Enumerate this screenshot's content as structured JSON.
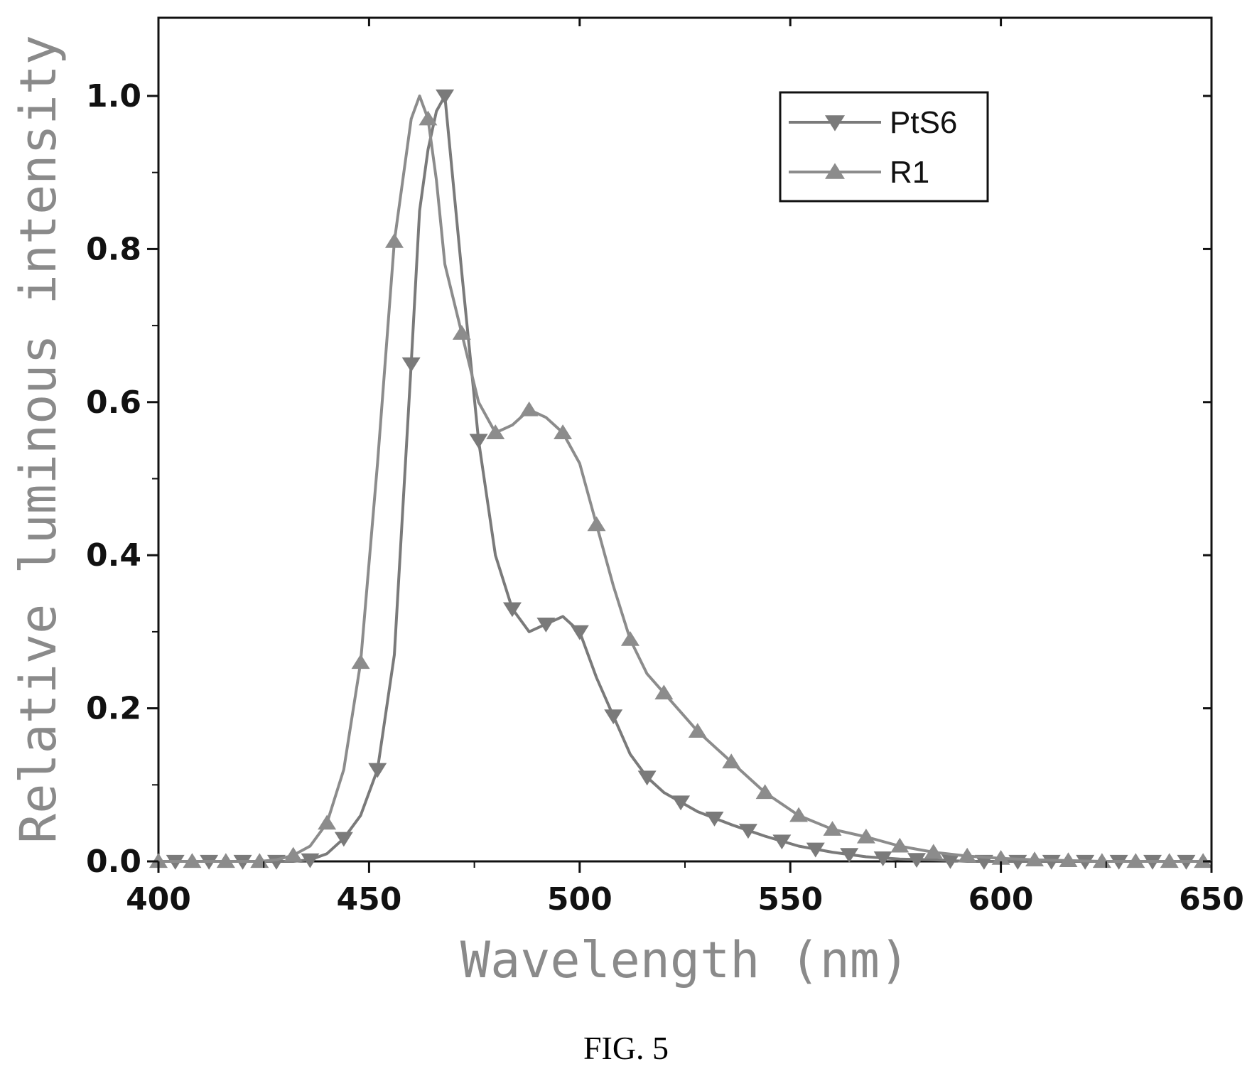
{
  "chart_data": {
    "type": "line",
    "xlabel": "Wavelength (nm)",
    "ylabel": "Relative luminous intensity",
    "xlim": [
      400,
      650
    ],
    "ylim": [
      0,
      1.1
    ],
    "xticks": [
      400,
      450,
      500,
      550,
      600,
      650
    ],
    "xtick_labels": [
      "400",
      "450",
      "500",
      "550",
      "600",
      "650"
    ],
    "yticks": [
      0.0,
      0.2,
      0.4,
      0.6,
      0.8,
      1.0
    ],
    "ytick_labels": [
      "0.0",
      "0.2",
      "0.4",
      "0.6",
      "0.8",
      "1.0"
    ],
    "grid": false,
    "legend_position": "top-right",
    "series": [
      {
        "name": "PtS6",
        "marker": "triangle-down",
        "color": "#7a7a7a",
        "x": [
          400,
          408,
          416,
          424,
          432,
          436,
          440,
          444,
          448,
          452,
          456,
          460,
          462,
          464,
          466,
          468,
          472,
          476,
          480,
          484,
          488,
          492,
          496,
          500,
          504,
          508,
          512,
          516,
          520,
          528,
          536,
          544,
          552,
          560,
          568,
          576,
          584,
          592,
          600,
          608,
          616,
          624,
          632,
          640,
          650
        ],
        "y": [
          0.0,
          0.0,
          0.0,
          0.0,
          0.0,
          0.002,
          0.01,
          0.03,
          0.06,
          0.12,
          0.27,
          0.65,
          0.85,
          0.93,
          0.98,
          1.0,
          0.77,
          0.55,
          0.4,
          0.33,
          0.3,
          0.31,
          0.32,
          0.3,
          0.24,
          0.19,
          0.14,
          0.11,
          0.09,
          0.065,
          0.048,
          0.033,
          0.02,
          0.012,
          0.006,
          0.003,
          0.002,
          0.0,
          0.0,
          0.0,
          0.0,
          0.0,
          0.0,
          0.0,
          0.0
        ]
      },
      {
        "name": "R1",
        "marker": "triangle-up",
        "color": "#8c8c8c",
        "x": [
          400,
          408,
          416,
          424,
          428,
          432,
          436,
          440,
          444,
          448,
          452,
          456,
          460,
          462,
          464,
          466,
          468,
          472,
          476,
          480,
          484,
          488,
          492,
          496,
          500,
          504,
          508,
          512,
          516,
          520,
          528,
          536,
          544,
          552,
          560,
          568,
          576,
          584,
          592,
          600,
          608,
          616,
          624,
          632,
          640,
          650
        ],
        "y": [
          0.0,
          0.0,
          0.0,
          0.0,
          0.002,
          0.008,
          0.02,
          0.05,
          0.12,
          0.26,
          0.52,
          0.81,
          0.97,
          1.0,
          0.97,
          0.89,
          0.78,
          0.69,
          0.6,
          0.56,
          0.57,
          0.59,
          0.58,
          0.56,
          0.52,
          0.44,
          0.36,
          0.29,
          0.245,
          0.22,
          0.17,
          0.13,
          0.09,
          0.06,
          0.042,
          0.032,
          0.02,
          0.012,
          0.007,
          0.004,
          0.002,
          0.001,
          0.0,
          0.0,
          0.0,
          0.0
        ]
      }
    ]
  },
  "caption": "FIG. 5"
}
